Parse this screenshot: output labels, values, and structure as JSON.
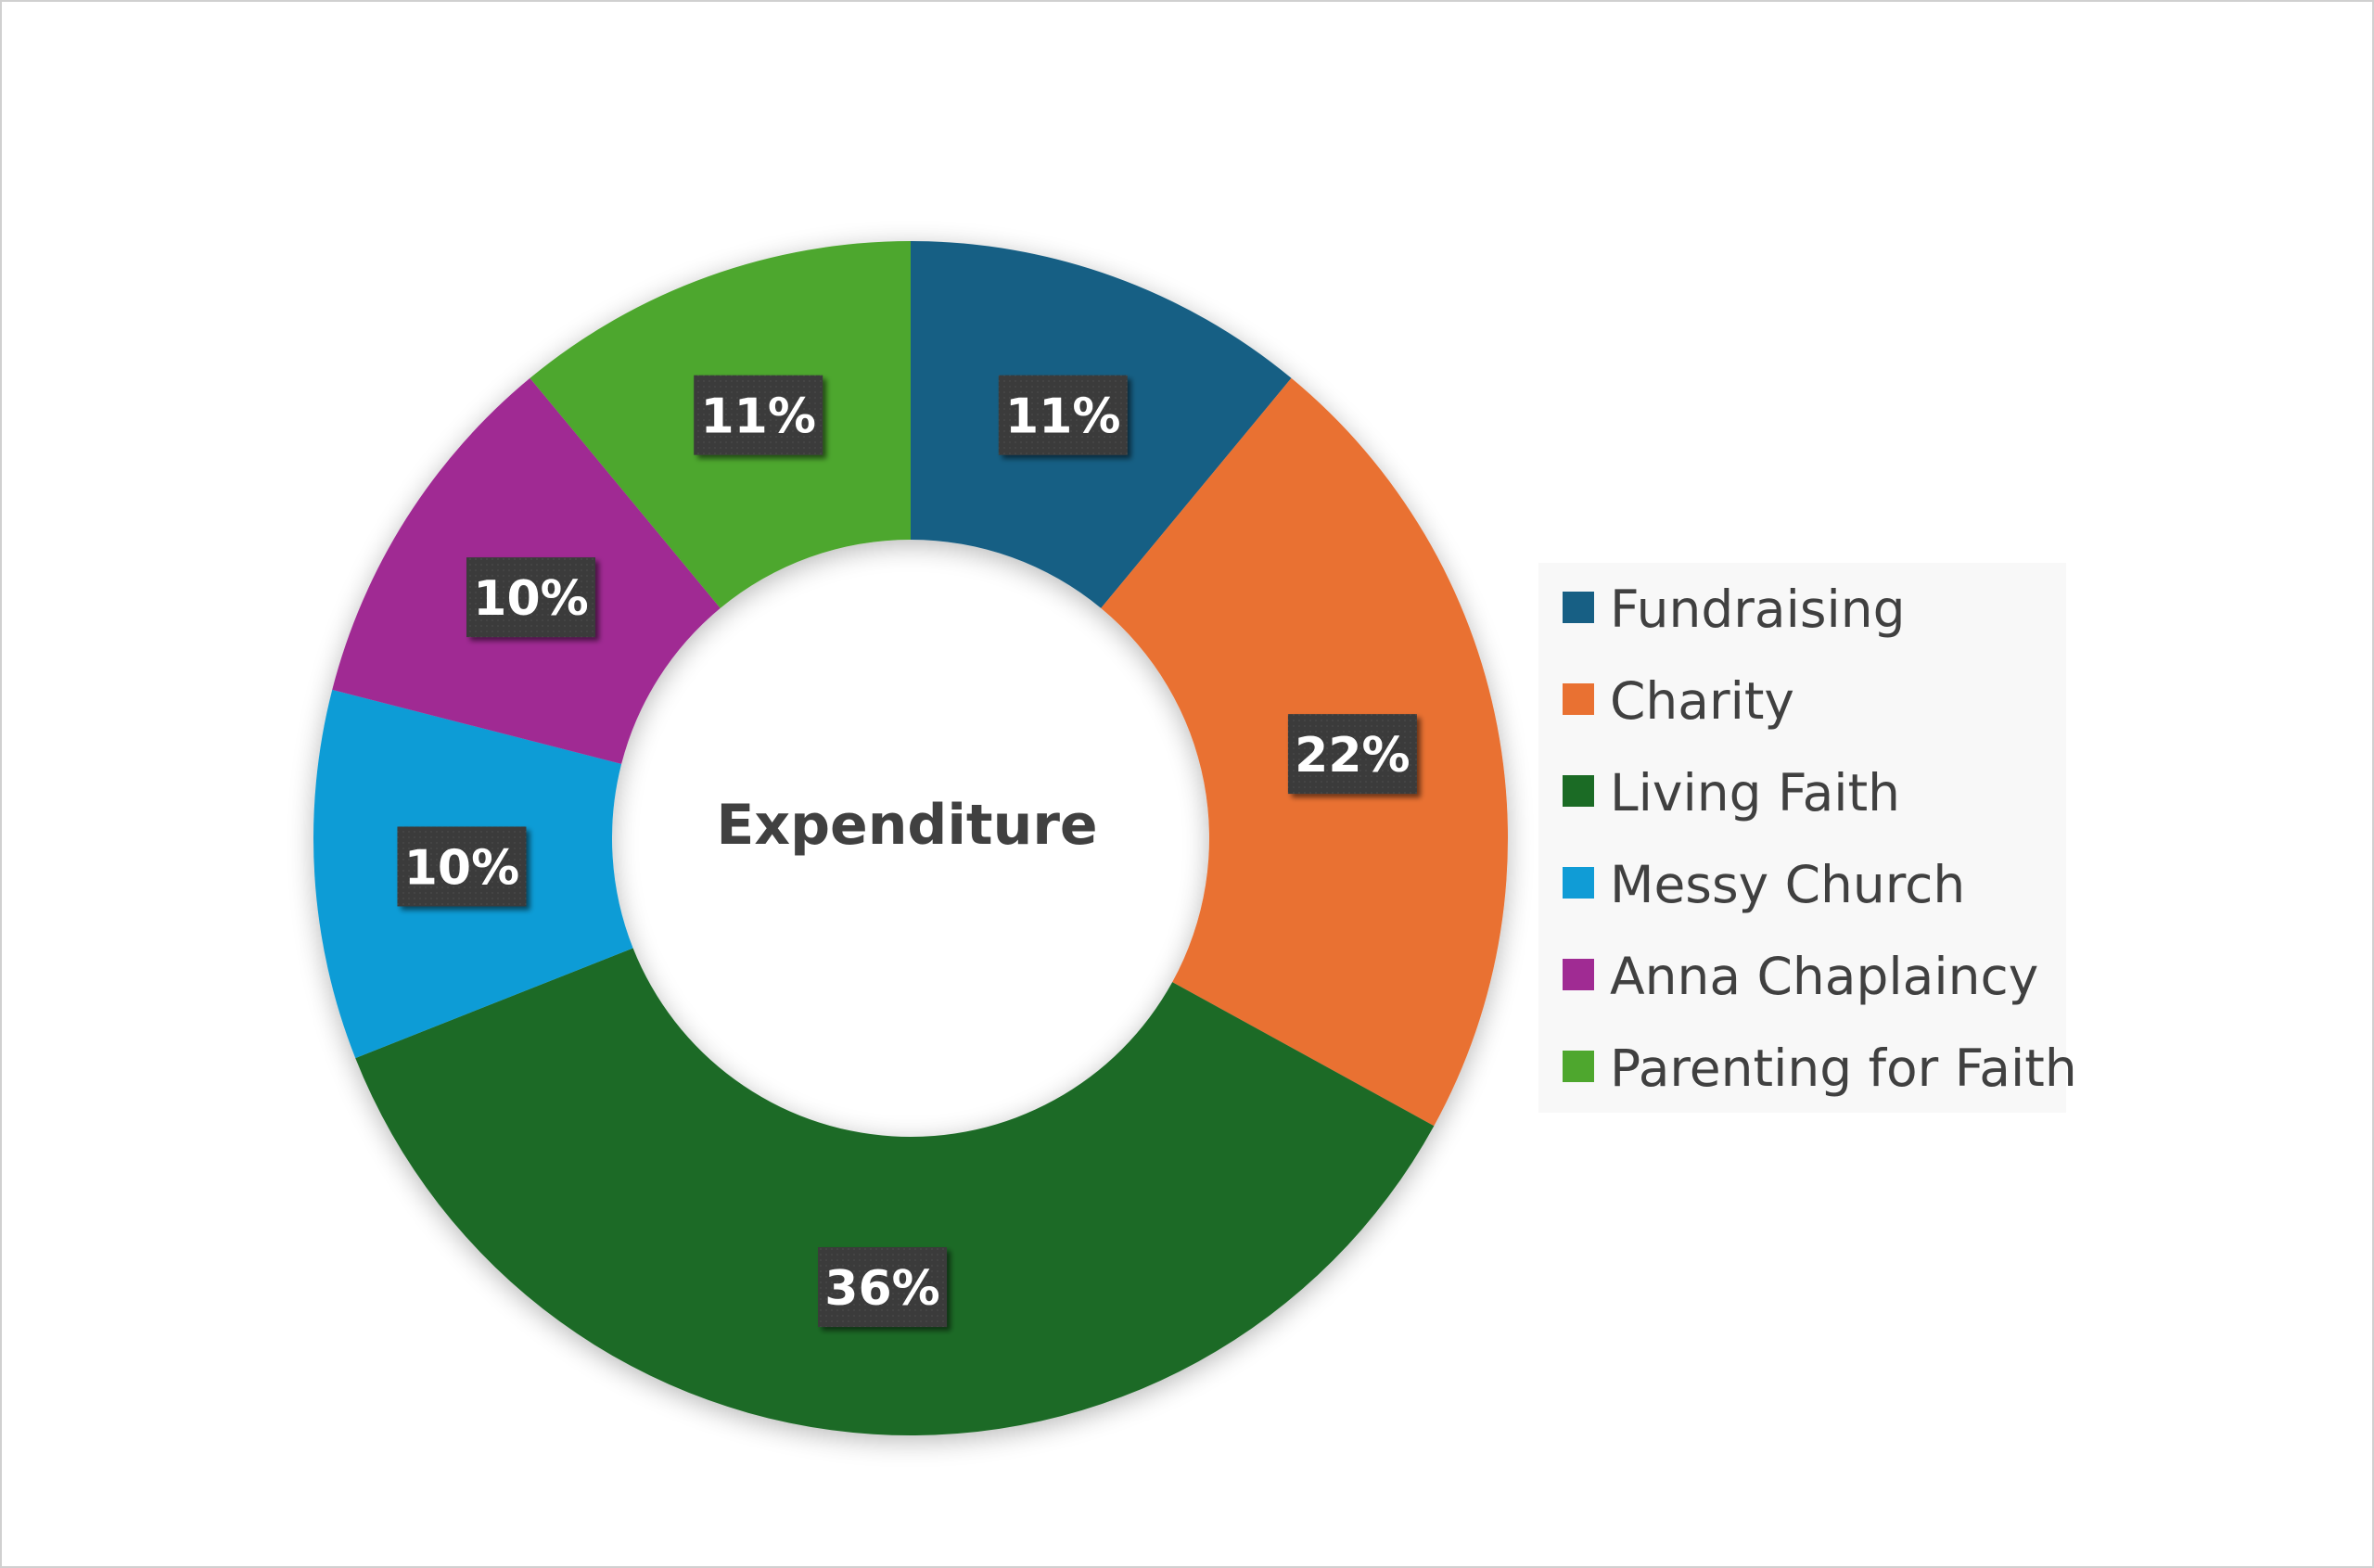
{
  "chart_data": {
    "type": "pie",
    "variant": "donut",
    "title": "Expenditure",
    "title_position": "center",
    "categories": [
      "Fundraising",
      "Charity",
      "Living Faith",
      "Messy Church",
      "Anna Chaplaincy",
      "Parenting for Faith"
    ],
    "values": [
      11,
      22,
      36,
      10,
      10,
      11
    ],
    "data_labels": [
      "11%",
      "22%",
      "36%",
      "10%",
      "10%",
      "11%"
    ],
    "colors": [
      "#175f84",
      "#e97132",
      "#1b6b25",
      "#109cd6",
      "#a02b93",
      "#4ea72e"
    ],
    "legend_position": "right",
    "label_box_color": "#3a3a3a"
  }
}
